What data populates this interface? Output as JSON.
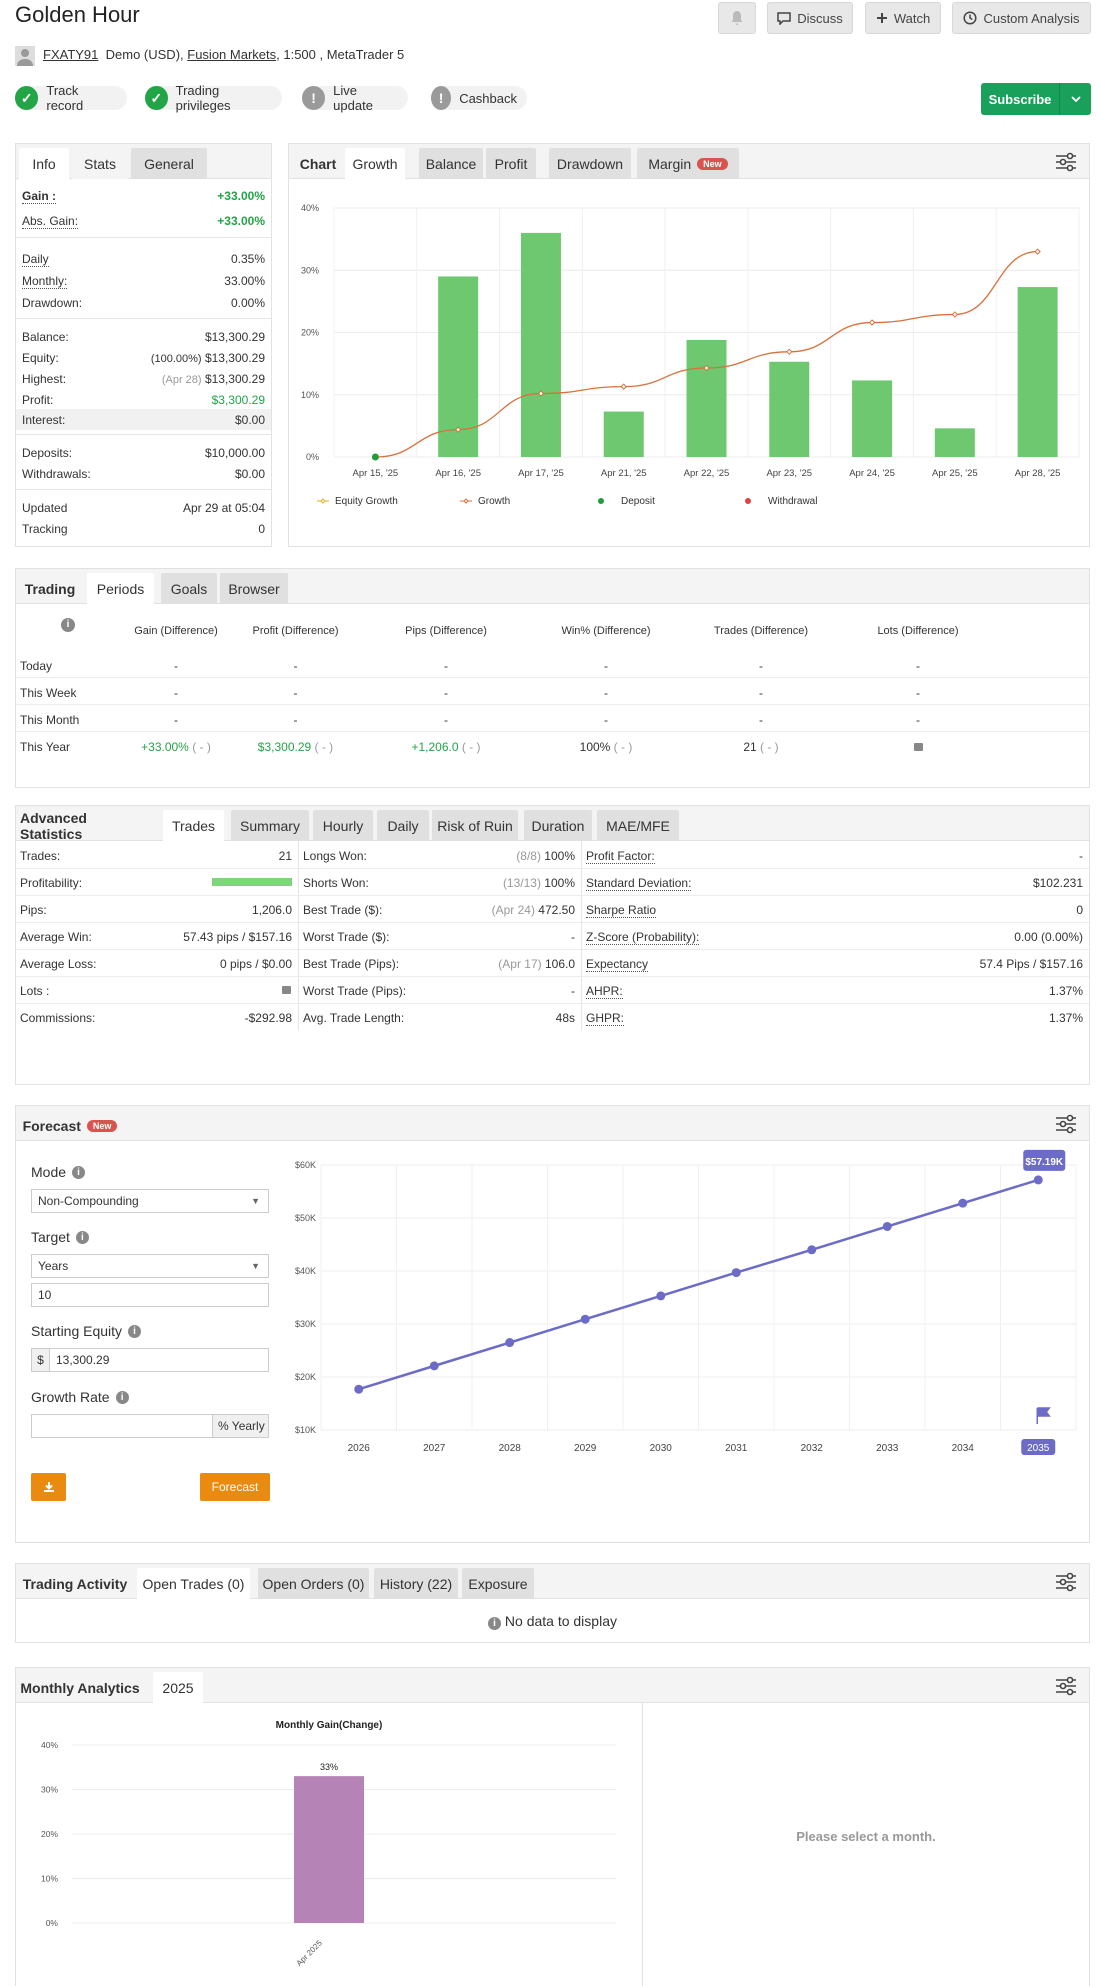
{
  "header": {
    "title": "Golden Hour",
    "username": "FXATY91",
    "account_prefix": "Demo (USD),",
    "broker": "Fusion Markets",
    "account_suffix": ", 1:500 , MetaTrader 5",
    "discuss": "Discuss",
    "watch": "Watch",
    "custom_analysis": "Custom Analysis",
    "subscribe": "Subscribe"
  },
  "badges": [
    "Track record",
    "Trading privileges",
    "Live update",
    "Cashback"
  ],
  "info": {
    "tabs": [
      "Info",
      "Stats",
      "General"
    ],
    "gain_label": "Gain :",
    "gain": "+33.00%",
    "abs_gain_label": "Abs. Gain:",
    "abs_gain": "+33.00%",
    "daily_label": "Daily",
    "daily": "0.35%",
    "monthly_label": "Monthly:",
    "monthly": "33.00%",
    "drawdown_label": "Drawdown:",
    "drawdown": "0.00%",
    "balance_label": "Balance:",
    "balance": "$13,300.29",
    "equity_label": "Equity:",
    "equity_pct": "(100.00%)",
    "equity": "$13,300.29",
    "highest_label": "Highest:",
    "highest_date": "(Apr 28)",
    "highest": "$13,300.29",
    "profit_label": "Profit:",
    "profit": "$3,300.29",
    "interest_label": "Interest:",
    "interest": "$0.00",
    "deposits_label": "Deposits:",
    "deposits": "$10,000.00",
    "withdrawals_label": "Withdrawals:",
    "withdrawals": "$0.00",
    "updated_label": "Updated",
    "updated": "Apr 29 at 05:04",
    "tracking_label": "Tracking",
    "tracking": "0"
  },
  "chart_tabs": {
    "chart": "Chart",
    "growth": "Growth",
    "balance": "Balance",
    "profit": "Profit",
    "drawdown": "Drawdown",
    "margin": "Margin",
    "new": "New"
  },
  "chart_data": [
    {
      "type": "bar",
      "categories": [
        "Apr 15, '25",
        "Apr 16, '25",
        "Apr 17, '25",
        "Apr 21, '25",
        "Apr 22, '25",
        "Apr 23, '25",
        "Apr 24, '25",
        "Apr 25, '25",
        "Apr 28, '25"
      ],
      "series": [
        {
          "name": "Growth",
          "type": "bar",
          "values": [
            0,
            29,
            36,
            7.3,
            18.8,
            15.3,
            12.3,
            4.6,
            27.3
          ],
          "color": "#6dc86f"
        },
        {
          "name": "Growth",
          "type": "line",
          "values": [
            0,
            4.4,
            10.2,
            11.3,
            14.3,
            16.9,
            21.6,
            22.9,
            33.0
          ],
          "color": "#d8703c"
        }
      ],
      "y_ticks": [
        "0%",
        "10%",
        "20%",
        "30%",
        "40%"
      ],
      "ylim": [
        0,
        40
      ],
      "legend": [
        "Equity Growth",
        "Growth",
        "Deposit",
        "Withdrawal"
      ],
      "legend_colors": [
        "#e0b020",
        "#d8703c",
        "#1f9e3c",
        "#e04040"
      ],
      "deposit_marker_index": 0
    },
    {
      "type": "line",
      "categories": [
        "2026",
        "2027",
        "2028",
        "2029",
        "2030",
        "2031",
        "2032",
        "2033",
        "2034",
        "2035"
      ],
      "values": [
        17.7,
        22.1,
        26.5,
        30.9,
        35.3,
        39.7,
        44.0,
        48.4,
        52.8,
        57.19
      ],
      "y_ticks": [
        "$10K",
        "$20K",
        "$30K",
        "$40K",
        "$50K",
        "$60K"
      ],
      "ylim": [
        10,
        60
      ],
      "end_label": "$57.19K",
      "color": "#6c6cc8"
    },
    {
      "type": "bar",
      "title": "Monthly Gain(Change)",
      "categories": [
        "Apr 2025"
      ],
      "values": [
        33
      ],
      "data_labels": [
        "33%"
      ],
      "y_ticks": [
        "0%",
        "10%",
        "20%",
        "30%",
        "40%"
      ],
      "ylim": [
        0,
        40
      ],
      "color": "#b583b5"
    }
  ],
  "trading": {
    "tabs": [
      "Trading",
      "Periods",
      "Goals",
      "Browser"
    ],
    "headers": [
      "Gain (Difference)",
      "Profit (Difference)",
      "Pips (Difference)",
      "Win% (Difference)",
      "Trades (Difference)",
      "Lots (Difference)"
    ],
    "rows": [
      {
        "label": "Today",
        "cells": [
          "-",
          "-",
          "-",
          "-",
          "-",
          "-"
        ]
      },
      {
        "label": "This Week",
        "cells": [
          "-",
          "-",
          "-",
          "-",
          "-",
          "-"
        ]
      },
      {
        "label": "This Month",
        "cells": [
          "-",
          "-",
          "-",
          "-",
          "-",
          "-"
        ]
      },
      {
        "label": "This Year",
        "cells": [
          "+33.00%",
          "$3,300.29",
          "+1,206.0",
          "100%",
          "21",
          ""
        ],
        "diff": "( - )"
      }
    ]
  },
  "advanced": {
    "tabs": [
      "Advanced Statistics",
      "Trades",
      "Summary",
      "Hourly",
      "Daily",
      "Risk of Ruin",
      "Duration",
      "MAE/MFE"
    ],
    "col1": [
      {
        "label": "Trades:",
        "value": "21"
      },
      {
        "label": "Profitability:",
        "value": ""
      },
      {
        "label": "Pips:",
        "value": "1,206.0"
      },
      {
        "label": "Average Win:",
        "value": "57.43 pips / $157.16"
      },
      {
        "label": "Average Loss:",
        "value": "0 pips / $0.00"
      },
      {
        "label": "Lots :",
        "value": ""
      },
      {
        "label": "Commissions:",
        "value": "-$292.98"
      }
    ],
    "col2": [
      {
        "label": "Longs Won:",
        "pre": "(8/8)",
        "value": "100%"
      },
      {
        "label": "Shorts Won:",
        "pre": "(13/13)",
        "value": "100%"
      },
      {
        "label": "Best Trade ($):",
        "pre": "(Apr 24)",
        "value": "472.50"
      },
      {
        "label": "Worst Trade ($):",
        "pre": "",
        "value": "-"
      },
      {
        "label": "Best Trade (Pips):",
        "pre": "(Apr 17)",
        "value": "106.0"
      },
      {
        "label": "Worst Trade (Pips):",
        "pre": "",
        "value": "-"
      },
      {
        "label": "Avg. Trade Length:",
        "pre": "",
        "value": "48s"
      }
    ],
    "col3": [
      {
        "label": "Profit Factor:",
        "value": "-"
      },
      {
        "label": "Standard Deviation:",
        "value": "$102.231"
      },
      {
        "label": "Sharpe Ratio",
        "value": "0"
      },
      {
        "label": "Z-Score (Probability):",
        "value": "0.00 (0.00%)"
      },
      {
        "label": "Expectancy",
        "value": "57.4 Pips / $157.16"
      },
      {
        "label": "AHPR:",
        "value": "1.37%"
      },
      {
        "label": "GHPR:",
        "value": "1.37%"
      }
    ],
    "profitability": 1.0
  },
  "forecast": {
    "title": "Forecast",
    "new": "New",
    "mode_label": "Mode",
    "mode": "Non-Compounding",
    "target_label": "Target",
    "target": "Years",
    "target_value": "10",
    "equity_label": "Starting Equity",
    "currency": "$",
    "equity": "13,300.29",
    "rate_label": "Growth Rate",
    "rate_value": "",
    "rate_unit": "% Yearly",
    "forecast_button": "Forecast"
  },
  "activity": {
    "tabs": [
      "Trading Activity",
      "Open Trades (0)",
      "Open Orders (0)",
      "History (22)",
      "Exposure"
    ],
    "empty": "No data to display"
  },
  "monthly": {
    "tabs": [
      "Monthly Analytics",
      "2025"
    ],
    "placeholder": "Please select a month."
  }
}
